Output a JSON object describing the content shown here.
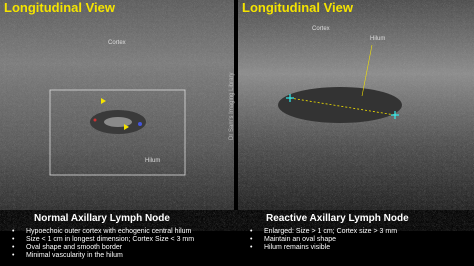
{
  "panels": [
    {
      "title": "Longitudinal View",
      "labels": [
        "Cortex",
        "Hilum"
      ],
      "caption": {
        "heading": "Normal Axillary Lymph Node",
        "bullets": [
          "Hypoechoic outer cortex with echogenic central hilum",
          "Size < 1 cm in longest dimension; Cortex Size < 3 mm",
          "Oval shape and smooth border",
          "Minimal vascularity in the hilum"
        ]
      }
    },
    {
      "title": "Longitudinal View",
      "labels": [
        "Cortex",
        "Hilum"
      ],
      "caption": {
        "heading": "Reactive Axillary Lymph Node",
        "bullets": [
          "Enlarged: Size > 1 cm; Cortex size > 3 mm",
          "Maintain an oval shape",
          "Hilum remains visible"
        ]
      }
    }
  ],
  "watermark": "Dr Sam's Imaging Library"
}
